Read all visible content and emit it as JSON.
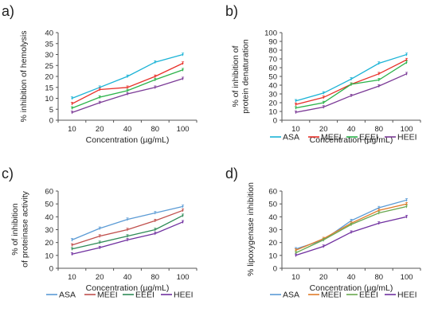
{
  "panel_letters": [
    "a)",
    "b)",
    "c)",
    "d)"
  ],
  "chart_data": [
    {
      "type": "line",
      "categories": [
        "10",
        "20",
        "40",
        "80",
        "100"
      ],
      "xlabel": "Concentration (µg/mL)",
      "ylabel": "% inhibition of hemolysis",
      "ylim": [
        0,
        40
      ],
      "yticks": [
        0,
        5,
        10,
        15,
        20,
        25,
        30,
        35,
        40
      ],
      "grid": false,
      "legend": "none",
      "series": [
        {
          "name": "ASA",
          "color": "#1bb3d6",
          "values": [
            10,
            15,
            20,
            26.5,
            30
          ]
        },
        {
          "name": "MEEI",
          "color": "#e8312a",
          "values": [
            7.5,
            14,
            15,
            20,
            26
          ]
        },
        {
          "name": "EEEI",
          "color": "#2bb34a",
          "values": [
            5.5,
            10.5,
            13.5,
            18.5,
            23
          ]
        },
        {
          "name": "HEEI",
          "color": "#7b3a96",
          "values": [
            3.5,
            8,
            12,
            15,
            19
          ]
        }
      ]
    },
    {
      "type": "line",
      "categories": [
        "10",
        "20",
        "40",
        "80",
        "100"
      ],
      "xlabel": "Concentration (µg/mL)",
      "ylabel": "% of inhibition of protein denaturation",
      "ylim": [
        0,
        100
      ],
      "yticks": [
        0,
        10,
        20,
        30,
        40,
        50,
        60,
        70,
        80,
        90,
        100
      ],
      "grid": false,
      "legend": "bottom",
      "series": [
        {
          "name": "ASA",
          "color": "#1bb3d6",
          "values": [
            22,
            31,
            47,
            65,
            75
          ]
        },
        {
          "name": "MEEI",
          "color": "#e8312a",
          "values": [
            18,
            26,
            41,
            53,
            69
          ]
        },
        {
          "name": "EEEI",
          "color": "#2bb34a",
          "values": [
            14,
            20,
            41,
            46,
            66
          ]
        },
        {
          "name": "HEEI",
          "color": "#7b3a96",
          "values": [
            9,
            15,
            28,
            39,
            53
          ]
        }
      ]
    },
    {
      "type": "line",
      "categories": [
        "10",
        "20",
        "40",
        "80",
        "100"
      ],
      "xlabel": "Concentration (µg/mL)",
      "ylabel": "% of inhibition of proteinase activity",
      "ylim": [
        0,
        60
      ],
      "yticks": [
        0,
        10,
        20,
        30,
        40,
        50,
        60
      ],
      "grid": false,
      "legend": "bottom",
      "series": [
        {
          "name": "ASA",
          "color": "#5b9bd5",
          "values": [
            22,
            31,
            38,
            43,
            48
          ]
        },
        {
          "name": "MEEI",
          "color": "#c0504d",
          "values": [
            18,
            25,
            30,
            37,
            45
          ]
        },
        {
          "name": "EEEI",
          "color": "#2e8b57",
          "values": [
            15,
            20,
            25,
            30,
            41
          ]
        },
        {
          "name": "HEEI",
          "color": "#7030a0",
          "values": [
            11,
            16,
            22,
            27,
            36
          ]
        }
      ]
    },
    {
      "type": "line",
      "categories": [
        "10",
        "20",
        "40",
        "80",
        "100"
      ],
      "xlabel": "Concentration (µg/mL)",
      "ylabel": "% lipoxygenase inhibition",
      "ylim": [
        0,
        60
      ],
      "yticks": [
        0,
        10,
        20,
        30,
        40,
        50,
        60
      ],
      "grid": false,
      "legend": "bottom",
      "series": [
        {
          "name": "ASA",
          "color": "#5b9bd5",
          "values": [
            15,
            22,
            37,
            47,
            53
          ]
        },
        {
          "name": "MEEI",
          "color": "#e07b2a",
          "values": [
            14,
            23,
            35,
            45,
            50
          ]
        },
        {
          "name": "EEEI",
          "color": "#6aa84f",
          "values": [
            12,
            22,
            34,
            43,
            48
          ]
        },
        {
          "name": "HEEI",
          "color": "#7030a0",
          "values": [
            10,
            17,
            28,
            35,
            40
          ]
        }
      ]
    }
  ]
}
